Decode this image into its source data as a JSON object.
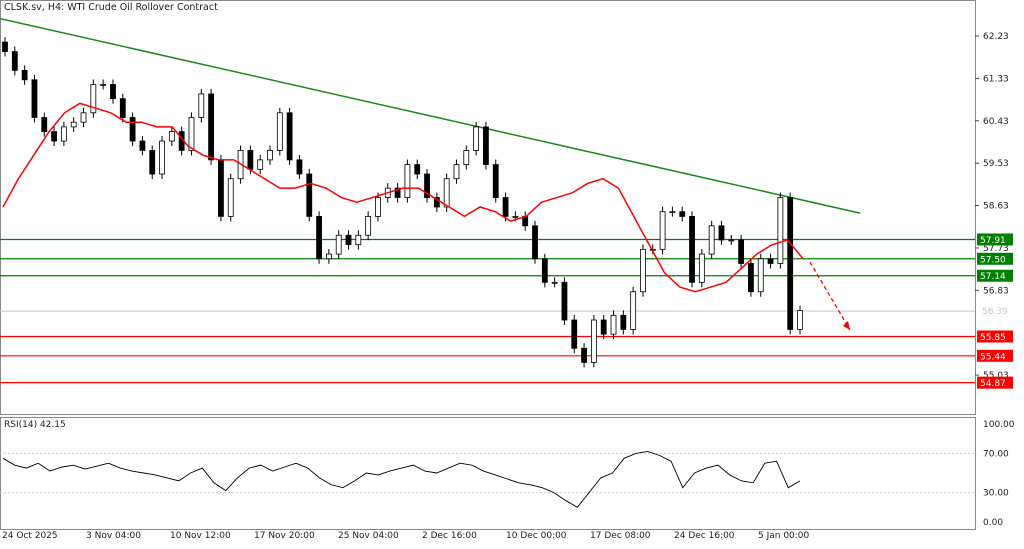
{
  "header": {
    "title": "CLSK.sv, H4:  WTI Crude Oil Rollover Contract"
  },
  "rsi": {
    "label": "RSI(14) 42.15",
    "ticks": [
      "100.00",
      "70.00",
      "30.00",
      "0.00"
    ],
    "tick_values": [
      100,
      70,
      30,
      0
    ]
  },
  "colors": {
    "up_line": "#008000",
    "down_line": "#ff0000",
    "ma": "#ff0000",
    "trend": "#1a8a1a",
    "candle": "#000000",
    "current": "#c8c8c8"
  },
  "chart_data": {
    "type": "candlestick",
    "price_axis": {
      "ticks": [
        62.23,
        61.33,
        60.43,
        59.53,
        58.63,
        57.73,
        56.83,
        55.03
      ],
      "range": [
        54.2,
        62.8
      ]
    },
    "time_labels": [
      "24 Oct 2025",
      "3 Nov 04:00",
      "10 Nov 12:00",
      "17 Nov 20:00",
      "25 Nov 04:00",
      "2 Dec 16:00",
      "10 Dec 00:00",
      "17 Dec 08:00",
      "24 Dec 16:00",
      "5 Jan 00:00"
    ],
    "closes": [
      61.9,
      61.5,
      61.3,
      60.5,
      60.2,
      60.0,
      60.3,
      60.4,
      60.6,
      61.2,
      61.2,
      60.9,
      60.5,
      60.0,
      59.8,
      59.3,
      60.0,
      60.2,
      59.8,
      60.5,
      61.0,
      59.6,
      58.4,
      59.2,
      59.8,
      59.4,
      59.6,
      59.8,
      60.6,
      59.6,
      59.3,
      58.4,
      57.5,
      57.6,
      58.0,
      57.8,
      58.0,
      58.4,
      58.8,
      59.0,
      58.8,
      59.5,
      59.3,
      58.8,
      58.6,
      59.2,
      59.5,
      59.8,
      60.3,
      59.5,
      58.8,
      58.4,
      58.4,
      58.2,
      57.5,
      57.0,
      57.0,
      56.2,
      55.6,
      55.3,
      56.2,
      55.9,
      56.3,
      56.0,
      56.8,
      57.7,
      57.7,
      58.5,
      58.5,
      58.4,
      57.0,
      57.6,
      58.2,
      57.9,
      57.9,
      57.4,
      56.8,
      57.5,
      57.4,
      58.8,
      56.0,
      56.4
    ],
    "ma": [
      58.6,
      59.2,
      59.7,
      60.2,
      60.6,
      60.8,
      60.7,
      60.6,
      60.4,
      60.4,
      60.3,
      60.3,
      59.9,
      59.7,
      59.6,
      59.6,
      59.4,
      59.2,
      59.0,
      59.0,
      59.1,
      59.0,
      58.8,
      58.7,
      58.8,
      58.9,
      59.0,
      59.0,
      58.8,
      58.6,
      58.4,
      58.6,
      58.5,
      58.3,
      58.4,
      58.7,
      58.8,
      58.9,
      59.1,
      59.2,
      59.0,
      58.4,
      57.8,
      57.2,
      56.9,
      56.8,
      56.9,
      57.0,
      57.3,
      57.6,
      57.8,
      57.9,
      57.5
    ],
    "rsi": [
      65,
      58,
      55,
      60,
      52,
      56,
      58,
      54,
      57,
      60,
      55,
      52,
      50,
      48,
      45,
      42,
      50,
      55,
      40,
      32,
      45,
      55,
      58,
      52,
      56,
      60,
      55,
      45,
      38,
      35,
      42,
      50,
      48,
      52,
      55,
      58,
      52,
      50,
      55,
      60,
      58,
      52,
      48,
      44,
      40,
      38,
      35,
      30,
      22,
      15,
      30,
      45,
      50,
      65,
      70,
      72,
      68,
      62,
      35,
      50,
      55,
      58,
      48,
      42,
      40,
      60,
      62,
      35,
      42
    ],
    "horizontal_levels": [
      {
        "value": 57.91,
        "label": "57.91",
        "color": "#008000"
      },
      {
        "value": 57.5,
        "label": "57.50",
        "color": "#008000"
      },
      {
        "value": 57.14,
        "label": "57.14",
        "color": "#008000"
      },
      {
        "value": 55.85,
        "label": "55.85",
        "color": "#ff0000"
      },
      {
        "value": 55.44,
        "label": "55.44",
        "color": "#ff0000"
      },
      {
        "value": 54.87,
        "label": "54.87",
        "color": "#ff0000"
      }
    ],
    "current_price": {
      "value": 56.39,
      "label": "56.39"
    },
    "trendline": [
      62.6,
      58.47
    ],
    "arrow": [
      57.43,
      55.99
    ]
  }
}
